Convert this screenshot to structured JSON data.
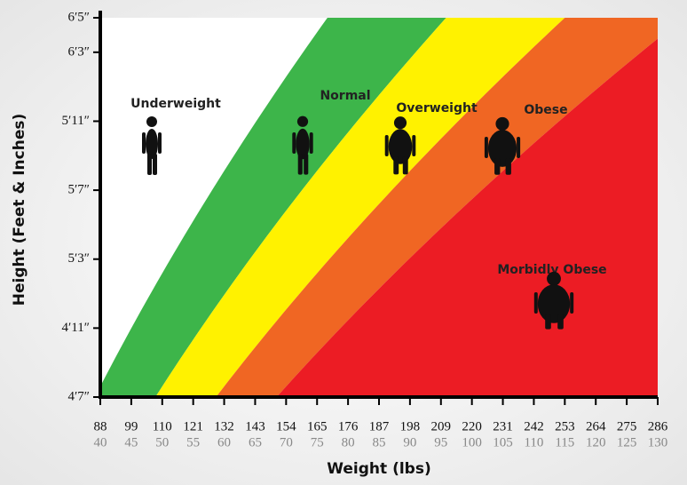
{
  "chart_data": {
    "type": "bmi-zones",
    "x_label": "Weight (lbs)",
    "y_label": "Height (Feet & Inches)",
    "xlim": [
      88,
      286
    ],
    "xticks": [
      88,
      99,
      110,
      121,
      132,
      143,
      154,
      165,
      176,
      187,
      198,
      209,
      220,
      231,
      242,
      253,
      264,
      275,
      286
    ],
    "xticks_kg": [
      40,
      45,
      50,
      55,
      60,
      65,
      70,
      75,
      80,
      85,
      90,
      95,
      100,
      105,
      110,
      115,
      120,
      125,
      130
    ],
    "ylim": [
      55,
      77
    ],
    "yticks": [
      {
        "value": 55,
        "label": "4′7″"
      },
      {
        "value": 59,
        "label": "4′11″"
      },
      {
        "value": 63,
        "label": "5′3″"
      },
      {
        "value": 67,
        "label": "5′7″"
      },
      {
        "value": 71,
        "label": "5′11″"
      },
      {
        "value": 75,
        "label": "6′3″"
      },
      {
        "value": 77,
        "label": "6′5″"
      }
    ],
    "bmi_boundaries": [
      20,
      25,
      30,
      35
    ],
    "zones": [
      {
        "name": "Underweight",
        "color": "#ffffff"
      },
      {
        "name": "Normal",
        "color": "#3db54a"
      },
      {
        "name": "Overweight",
        "color": "#fff200"
      },
      {
        "name": "Obese",
        "color": "#f06623"
      },
      {
        "name": "Morbidly Obese",
        "color": "#ec1c24"
      }
    ]
  }
}
